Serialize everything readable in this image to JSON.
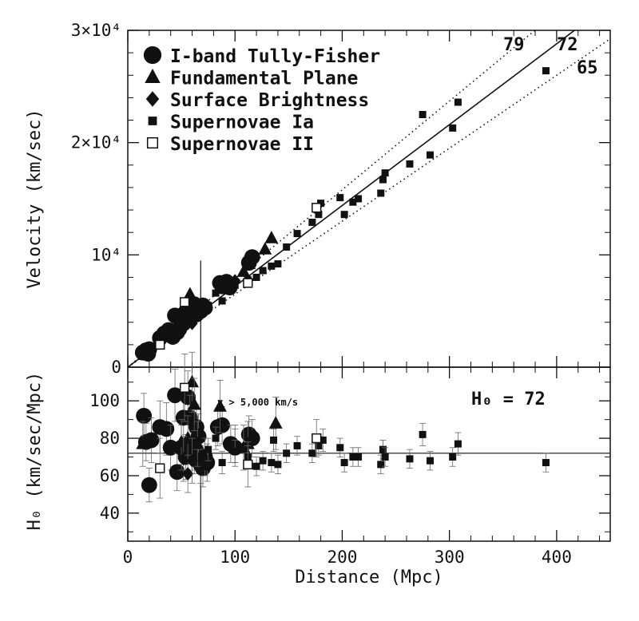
{
  "chart_data": [
    {
      "type": "scatter",
      "panel": "top",
      "xlabel": "",
      "ylabel": "Velocity (km/sec)",
      "xlim": [
        0,
        450
      ],
      "ylim": [
        0,
        30000
      ],
      "yticks": [
        {
          "value": 0,
          "label": "0"
        },
        {
          "value": 10000,
          "label": "10⁴"
        },
        {
          "value": 20000,
          "label": "2×10⁴"
        },
        {
          "value": 30000,
          "label": "3×10⁴"
        }
      ],
      "legend_position": "top-left",
      "reference_lines": [
        {
          "slope": 79,
          "label": "79",
          "style": "dotted"
        },
        {
          "slope": 72,
          "label": "72",
          "style": "solid"
        },
        {
          "slope": 65,
          "label": "65",
          "style": "dotted"
        }
      ],
      "vertical_marker_x": 68,
      "series": [
        {
          "name": "I-band Tully-Fisher",
          "marker": "circle",
          "points": [
            [
              14,
              1300
            ],
            [
              17,
              1500
            ],
            [
              19,
              1200
            ],
            [
              20,
              1600
            ],
            [
              30,
              2600
            ],
            [
              34,
              3000
            ],
            [
              38,
              3300
            ],
            [
              42,
              2700
            ],
            [
              44,
              4600
            ],
            [
              46,
              3100
            ],
            [
              48,
              3400
            ],
            [
              50,
              4200
            ],
            [
              52,
              3900
            ],
            [
              54,
              4900
            ],
            [
              56,
              4300
            ],
            [
              58,
              5300
            ],
            [
              60,
              4800
            ],
            [
              62,
              5600
            ],
            [
              64,
              4700
            ],
            [
              66,
              5100
            ],
            [
              68,
              5000
            ],
            [
              70,
              5500
            ],
            [
              72,
              5300
            ],
            [
              86,
              7500
            ],
            [
              88,
              7200
            ],
            [
              92,
              7600
            ],
            [
              95,
              7100
            ],
            [
              113,
              9300
            ],
            [
              116,
              9800
            ]
          ]
        },
        {
          "name": "Fundamental Plane",
          "marker": "triangle",
          "points": [
            [
              58,
              6500
            ],
            [
              65,
              5200
            ],
            [
              108,
              8500
            ],
            [
              113,
              9200
            ],
            [
              128,
              10500
            ],
            [
              134,
              11500
            ]
          ]
        },
        {
          "name": "Surface Brightness",
          "marker": "diamond",
          "points": [
            [
              52,
              3600
            ],
            [
              56,
              4400
            ],
            [
              60,
              3900
            ],
            [
              100,
              7700
            ]
          ]
        },
        {
          "name": "Supernovae Ia",
          "marker": "square",
          "points": [
            [
              75,
              5500
            ],
            [
              82,
              6600
            ],
            [
              88,
              5900
            ],
            [
              100,
              7300
            ],
            [
              112,
              7800
            ],
            [
              120,
              8000
            ],
            [
              126,
              8600
            ],
            [
              134,
              9000
            ],
            [
              140,
              9200
            ],
            [
              148,
              10700
            ],
            [
              158,
              11900
            ],
            [
              172,
              12900
            ],
            [
              178,
              13600
            ],
            [
              180,
              14600
            ],
            [
              198,
              15100
            ],
            [
              202,
              13600
            ],
            [
              210,
              14700
            ],
            [
              215,
              15000
            ],
            [
              236,
              15500
            ],
            [
              238,
              16700
            ],
            [
              240,
              17300
            ],
            [
              263,
              18100
            ],
            [
              275,
              22500
            ],
            [
              282,
              18900
            ],
            [
              303,
              21300
            ],
            [
              308,
              23600
            ],
            [
              390,
              26400
            ]
          ]
        },
        {
          "name": "Supernovae II",
          "marker": "open-square",
          "points": [
            [
              30,
              2000
            ],
            [
              53,
              5800
            ],
            [
              112,
              7500
            ],
            [
              176,
              14200
            ]
          ]
        }
      ]
    },
    {
      "type": "scatter",
      "panel": "bottom",
      "xlabel": "Distance (Mpc)",
      "ylabel": "H₀ (km/sec/Mpc)",
      "xlim": [
        0,
        450
      ],
      "ylim": [
        25,
        118
      ],
      "xticks": [
        {
          "value": 0,
          "label": "0"
        },
        {
          "value": 100,
          "label": "100"
        },
        {
          "value": 200,
          "label": "200"
        },
        {
          "value": 300,
          "label": "300"
        },
        {
          "value": 400,
          "label": "400"
        }
      ],
      "yticks": [
        {
          "value": 40,
          "label": "40"
        },
        {
          "value": 60,
          "label": "60"
        },
        {
          "value": 80,
          "label": "80"
        },
        {
          "value": 100,
          "label": "100"
        }
      ],
      "annotation": "v > 5,000 km/s",
      "h0_label": "H₀ = 72",
      "reference_line_y": 72,
      "vertical_marker_x": 68,
      "series": [
        {
          "name": "I-band Tully-Fisher",
          "marker": "circle",
          "points": [
            [
              15,
              92,
              12
            ],
            [
              17,
              78,
              10
            ],
            [
              20,
              55,
              9
            ],
            [
              22,
              79,
              12
            ],
            [
              30,
              86,
              14
            ],
            [
              36,
              85,
              14
            ],
            [
              40,
              75,
              12
            ],
            [
              44,
              103,
              14
            ],
            [
              46,
              62,
              10
            ],
            [
              50,
              75,
              12
            ],
            [
              52,
              91,
              12
            ],
            [
              54,
              70,
              12
            ],
            [
              56,
              102,
              14
            ],
            [
              58,
              91,
              12
            ],
            [
              60,
              75,
              12
            ],
            [
              62,
              73,
              12
            ],
            [
              64,
              86,
              12
            ],
            [
              66,
              81,
              12
            ],
            [
              68,
              66,
              10
            ],
            [
              70,
              64,
              10
            ],
            [
              72,
              70,
              10
            ],
            [
              74,
              67,
              10
            ],
            [
              84,
              86,
              10
            ],
            [
              88,
              87,
              10
            ],
            [
              96,
              77,
              10
            ],
            [
              100,
              75,
              10
            ],
            [
              113,
              82,
              10
            ],
            [
              116,
              80,
              10
            ]
          ]
        },
        {
          "name": "Fundamental Plane",
          "marker": "triangle",
          "points": [
            [
              14,
              77,
              12
            ],
            [
              50,
              78,
              12
            ],
            [
              56,
              80,
              12
            ],
            [
              60,
              110,
              16
            ],
            [
              62,
              98,
              14
            ],
            [
              65,
              77,
              12
            ],
            [
              86,
              97,
              14
            ],
            [
              108,
              75,
              12
            ],
            [
              112,
              77,
              12
            ],
            [
              138,
              88,
              14
            ]
          ]
        },
        {
          "name": "Surface Brightness",
          "marker": "diamond",
          "points": [
            [
              52,
              69,
              12
            ],
            [
              56,
              61,
              10
            ],
            [
              60,
              68,
              12
            ],
            [
              100,
              77,
              10
            ]
          ]
        },
        {
          "name": "Supernovae Ia",
          "marker": "square",
          "points": [
            [
              75,
              74,
              6
            ],
            [
              82,
              80,
              6
            ],
            [
              88,
              67,
              6
            ],
            [
              100,
              73,
              6
            ],
            [
              112,
              70,
              6
            ],
            [
              120,
              65,
              5
            ],
            [
              126,
              68,
              5
            ],
            [
              134,
              67,
              5
            ],
            [
              136,
              79,
              6
            ],
            [
              140,
              66,
              5
            ],
            [
              148,
              72,
              5
            ],
            [
              158,
              76,
              5
            ],
            [
              172,
              72,
              5
            ],
            [
              178,
              76,
              5
            ],
            [
              182,
              79,
              6
            ],
            [
              198,
              75,
              5
            ],
            [
              202,
              67,
              5
            ],
            [
              210,
              70,
              5
            ],
            [
              215,
              70,
              5
            ],
            [
              236,
              66,
              5
            ],
            [
              238,
              74,
              5
            ],
            [
              240,
              70,
              5
            ],
            [
              263,
              69,
              5
            ],
            [
              275,
              82,
              6
            ],
            [
              282,
              68,
              5
            ],
            [
              303,
              70,
              5
            ],
            [
              308,
              77,
              6
            ],
            [
              390,
              67,
              5
            ]
          ]
        },
        {
          "name": "Supernovae II",
          "marker": "open-square",
          "points": [
            [
              30,
              64,
              16
            ],
            [
              53,
              107,
              18
            ],
            [
              112,
              66,
              12
            ],
            [
              176,
              80,
              10
            ]
          ]
        }
      ]
    }
  ]
}
